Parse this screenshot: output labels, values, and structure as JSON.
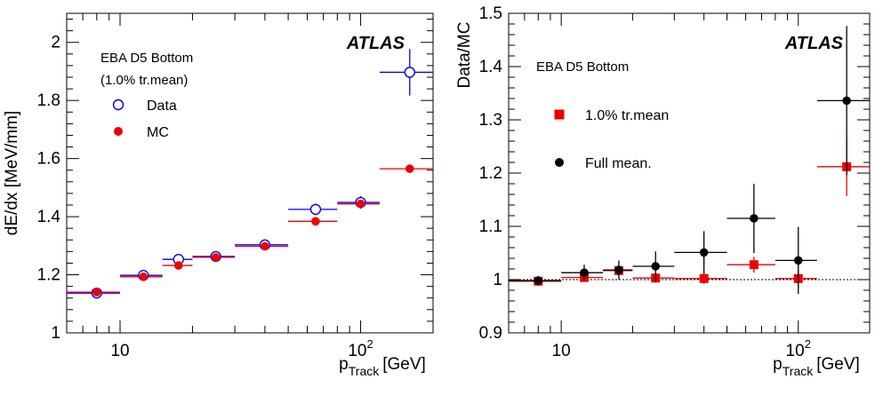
{
  "chart_data": [
    {
      "type": "scatter",
      "x_scale": "log",
      "xlim": [
        6,
        200
      ],
      "ylim": [
        1.0,
        2.1
      ],
      "xlabel": {
        "main": "p",
        "sub": "Track",
        "unit": "[GeV]"
      },
      "ylabel": "dE/dx [MeV/mm]",
      "x_ticks": [
        {
          "value": 10,
          "label": "10"
        },
        {
          "value": 100,
          "label": "10",
          "exp": "2"
        }
      ],
      "y_ticks": [
        {
          "value": 1.0,
          "label": "1"
        },
        {
          "value": 1.2,
          "label": "1.2"
        },
        {
          "value": 1.4,
          "label": "1.4"
        },
        {
          "value": 1.6,
          "label": "1.6"
        },
        {
          "value": 1.8,
          "label": "1.8"
        },
        {
          "value": 2.0,
          "label": "2"
        }
      ],
      "atlas_label": "ATLAS",
      "annotations": [
        "EBA D5 Bottom",
        "(1.0% tr.mean)"
      ],
      "legend": [
        {
          "label": "Data",
          "marker": "open-circle",
          "color": "#0000ee"
        },
        {
          "label": "MC",
          "marker": "filled-circle",
          "color": "#ee0000"
        }
      ],
      "series": [
        {
          "name": "Data",
          "marker": "open-circle",
          "color": "#0000ee",
          "points": [
            {
              "x": 8,
              "xlo": 6,
              "xhi": 10,
              "y": 1.137,
              "yerr": 0.006
            },
            {
              "x": 12.5,
              "xlo": 10,
              "xhi": 15,
              "y": 1.198,
              "yerr": 0.006
            },
            {
              "x": 17.5,
              "xlo": 15,
              "xhi": 20,
              "y": 1.253,
              "yerr": 0.008
            },
            {
              "x": 25,
              "xlo": 20,
              "xhi": 30,
              "y": 1.263,
              "yerr": 0.008
            },
            {
              "x": 40,
              "xlo": 30,
              "xhi": 50,
              "y": 1.303,
              "yerr": 0.01
            },
            {
              "x": 65,
              "xlo": 50,
              "xhi": 80,
              "y": 1.425,
              "yerr": 0.02
            },
            {
              "x": 100,
              "xlo": 80,
              "xhi": 120,
              "y": 1.449,
              "yerr": 0.022
            },
            {
              "x": 160,
              "xlo": 120,
              "xhi": 200,
              "y": 1.897,
              "yerr": 0.08
            }
          ]
        },
        {
          "name": "MC",
          "marker": "filled-circle",
          "color": "#ee0000",
          "points": [
            {
              "x": 8,
              "xlo": 6,
              "xhi": 10,
              "y": 1.14,
              "yerr": 0.004
            },
            {
              "x": 12.5,
              "xlo": 10,
              "xhi": 15,
              "y": 1.193,
              "yerr": 0.004
            },
            {
              "x": 17.5,
              "xlo": 15,
              "xhi": 20,
              "y": 1.232,
              "yerr": 0.005
            },
            {
              "x": 25,
              "xlo": 20,
              "xhi": 30,
              "y": 1.26,
              "yerr": 0.005
            },
            {
              "x": 40,
              "xlo": 30,
              "xhi": 50,
              "y": 1.298,
              "yerr": 0.006
            },
            {
              "x": 65,
              "xlo": 50,
              "xhi": 80,
              "y": 1.384,
              "yerr": 0.008
            },
            {
              "x": 100,
              "xlo": 80,
              "xhi": 120,
              "y": 1.444,
              "yerr": 0.01
            },
            {
              "x": 160,
              "xlo": 120,
              "xhi": 200,
              "y": 1.565,
              "yerr": 0.014
            }
          ]
        }
      ]
    },
    {
      "type": "scatter",
      "x_scale": "log",
      "xlim": [
        6,
        200
      ],
      "ylim": [
        0.9,
        1.5
      ],
      "xlabel": {
        "main": "p",
        "sub": "Track",
        "unit": "[GeV]"
      },
      "ylabel": "Data/MC",
      "x_ticks": [
        {
          "value": 10,
          "label": "10"
        },
        {
          "value": 100,
          "label": "10",
          "exp": "2"
        }
      ],
      "y_ticks": [
        {
          "value": 0.9,
          "label": "0.9"
        },
        {
          "value": 1.0,
          "label": "1"
        },
        {
          "value": 1.1,
          "label": "1.1"
        },
        {
          "value": 1.2,
          "label": "1.2"
        },
        {
          "value": 1.3,
          "label": "1.3"
        },
        {
          "value": 1.4,
          "label": "1.4"
        },
        {
          "value": 1.5,
          "label": "1.5"
        }
      ],
      "reference_line": 1.0,
      "atlas_label": "ATLAS",
      "annotations": [
        "EBA D5 Bottom"
      ],
      "legend": [
        {
          "label": "1.0% tr.mean",
          "marker": "filled-square",
          "color": "#ee0000"
        },
        {
          "label": "Full mean.",
          "marker": "filled-circle",
          "color": "#000000"
        }
      ],
      "series": [
        {
          "name": "1.0% tr.mean",
          "marker": "filled-square",
          "color": "#ee0000",
          "points": [
            {
              "x": 8,
              "xlo": 6,
              "xhi": 10,
              "y": 0.997,
              "yerr": 0.006
            },
            {
              "x": 12.5,
              "xlo": 10,
              "xhi": 15,
              "y": 1.004,
              "yerr": 0.007
            },
            {
              "x": 17.5,
              "xlo": 15,
              "xhi": 20,
              "y": 1.017,
              "yerr": 0.008
            },
            {
              "x": 25,
              "xlo": 20,
              "xhi": 30,
              "y": 1.003,
              "yerr": 0.009
            },
            {
              "x": 40,
              "xlo": 30,
              "xhi": 50,
              "y": 1.002,
              "yerr": 0.01
            },
            {
              "x": 65,
              "xlo": 50,
              "xhi": 80,
              "y": 1.028,
              "yerr": 0.015
            },
            {
              "x": 100,
              "xlo": 80,
              "xhi": 120,
              "y": 1.002,
              "yerr": 0.017
            },
            {
              "x": 160,
              "xlo": 120,
              "xhi": 200,
              "y": 1.212,
              "yerr": 0.055
            }
          ]
        },
        {
          "name": "Full mean.",
          "marker": "filled-circle",
          "color": "#000000",
          "points": [
            {
              "x": 8,
              "xlo": 6,
              "xhi": 10,
              "y": 0.998,
              "yerr": 0.009
            },
            {
              "x": 12.5,
              "xlo": 10,
              "xhi": 15,
              "y": 1.013,
              "yerr": 0.015
            },
            {
              "x": 17.5,
              "xlo": 15,
              "xhi": 20,
              "y": 1.018,
              "yerr": 0.018
            },
            {
              "x": 25,
              "xlo": 20,
              "xhi": 30,
              "y": 1.025,
              "yerr": 0.028
            },
            {
              "x": 40,
              "xlo": 30,
              "xhi": 50,
              "y": 1.051,
              "yerr": 0.04
            },
            {
              "x": 65,
              "xlo": 50,
              "xhi": 80,
              "y": 1.115,
              "yerr": 0.065
            },
            {
              "x": 100,
              "xlo": 80,
              "xhi": 120,
              "y": 1.036,
              "yerr": 0.063
            },
            {
              "x": 160,
              "xlo": 120,
              "xhi": 200,
              "y": 1.336,
              "yerr": 0.14
            }
          ]
        }
      ]
    }
  ]
}
